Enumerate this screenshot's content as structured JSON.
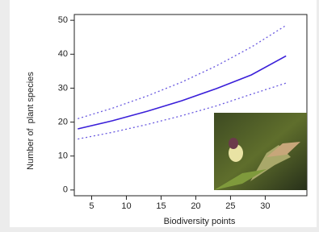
{
  "chart_data": {
    "type": "line",
    "x_label": "Biodiversity points",
    "y_label": "Number of  plant species",
    "x": [
      3,
      8,
      13,
      18,
      23,
      28,
      33
    ],
    "series": [
      {
        "color": "#6a5ae0",
        "dashed": true,
        "values": [
          21,
          24.1,
          27.7,
          31.8,
          36.6,
          42.1,
          48.5
        ]
      },
      {
        "color": "#3a1fd9",
        "dashed": false,
        "values": [
          18,
          20.4,
          23.2,
          26.3,
          29.9,
          33.9,
          39.5
        ]
      },
      {
        "color": "#6a5ae0",
        "dashed": true,
        "values": [
          15,
          17.0,
          19.3,
          21.9,
          24.8,
          28.2,
          31.5
        ]
      }
    ],
    "xlim": [
      2.5,
      36
    ],
    "xticks": [
      5,
      10,
      15,
      20,
      25,
      30
    ],
    "ylim": [
      -1.7,
      51.7
    ],
    "yticks": [
      0,
      10,
      20,
      30,
      40,
      50
    ]
  }
}
